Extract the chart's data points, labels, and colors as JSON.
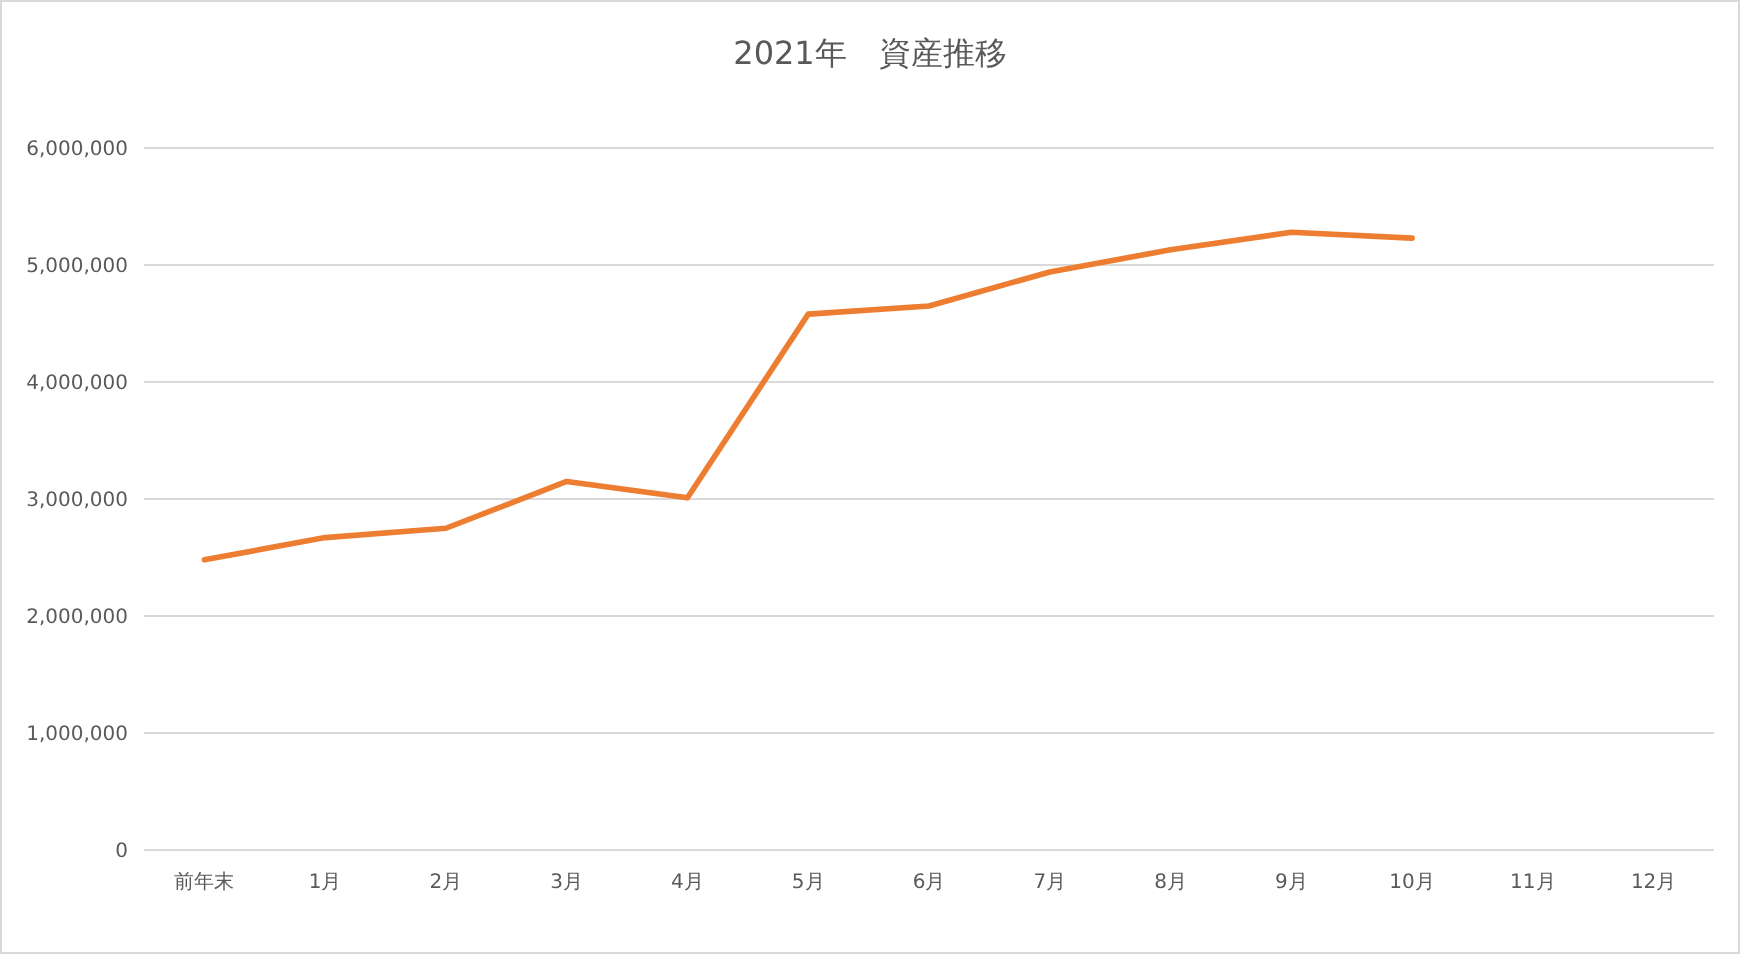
{
  "chart_data": {
    "type": "line",
    "title": "2021年　資産推移",
    "categories": [
      "前年末",
      "1月",
      "2月",
      "3月",
      "4月",
      "5月",
      "6月",
      "7月",
      "8月",
      "9月",
      "10月",
      "11月",
      "12月"
    ],
    "series": [
      {
        "color": "#ed7d31",
        "values": [
          2480000,
          2670000,
          2750000,
          3150000,
          3010000,
          4580000,
          4650000,
          4940000,
          5130000,
          5280000,
          5230000,
          null,
          null
        ]
      }
    ],
    "ylim": [
      0,
      6000000
    ],
    "yticks": [
      {
        "value": 0,
        "label": "0"
      },
      {
        "value": 1000000,
        "label": "1,000,000"
      },
      {
        "value": 2000000,
        "label": "2,000,000"
      },
      {
        "value": 3000000,
        "label": "3,000,000"
      },
      {
        "value": 4000000,
        "label": "4,000,000"
      },
      {
        "value": 5000000,
        "label": "5,000,000"
      },
      {
        "value": 6000000,
        "label": "6,000,000"
      }
    ],
    "grid": "y",
    "marker": "none",
    "line_style": "solid"
  }
}
